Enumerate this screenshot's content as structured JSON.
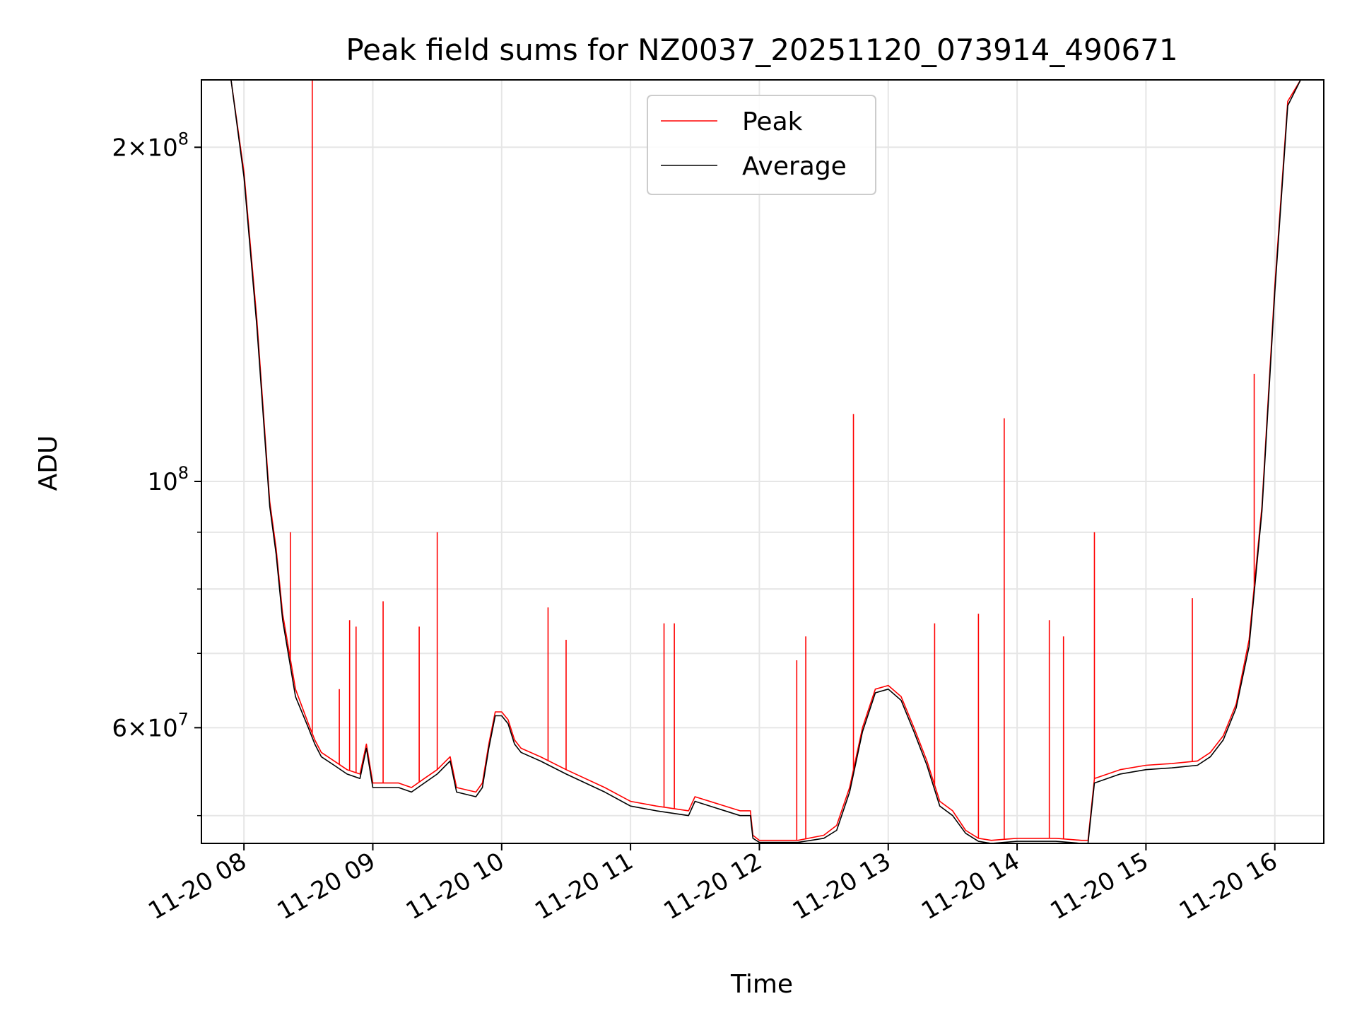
{
  "chart_data": {
    "type": "line",
    "title": "Peak field sums for NZ0037_20251120_073914_490671",
    "xlabel": "Time",
    "ylabel": "ADU",
    "y_scale": "log",
    "grid": true,
    "legend_position": "upper center",
    "xlim": [
      7.67,
      16.38
    ],
    "ylim": [
      47200000,
      230000000
    ],
    "x_ticks": [
      {
        "value": 8,
        "label": "11-20 08"
      },
      {
        "value": 9,
        "label": "11-20 09"
      },
      {
        "value": 10,
        "label": "11-20 10"
      },
      {
        "value": 11,
        "label": "11-20 11"
      },
      {
        "value": 12,
        "label": "11-20 12"
      },
      {
        "value": 13,
        "label": "11-20 13"
      },
      {
        "value": 14,
        "label": "11-20 14"
      },
      {
        "value": 15,
        "label": "11-20 15"
      },
      {
        "value": 16,
        "label": "11-20 16"
      }
    ],
    "y_major_ticks": [
      {
        "value": 60000000,
        "mantissa": "6",
        "exp": "7"
      },
      {
        "value": 100000000,
        "mantissa": "",
        "exp": "8"
      },
      {
        "value": 200000000,
        "mantissa": "2",
        "exp": "8"
      }
    ],
    "y_minor_ticks": [
      50000000,
      70000000,
      80000000,
      90000000
    ],
    "series": [
      {
        "name": "Peak",
        "color": "#ff0000",
        "x": [
          7.67,
          7.9,
          8.0,
          8.1,
          8.2,
          8.25,
          8.3,
          8.4,
          8.5,
          8.55,
          8.6,
          8.7,
          8.8,
          8.9,
          8.95,
          9.0,
          9.2,
          9.3,
          9.4,
          9.5,
          9.6,
          9.65,
          9.8,
          9.85,
          9.9,
          9.95,
          10.0,
          10.05,
          10.1,
          10.15,
          10.3,
          10.5,
          10.8,
          11.0,
          11.2,
          11.45,
          11.5,
          11.85,
          11.93,
          11.95,
          12.0,
          12.3,
          12.5,
          12.6,
          12.7,
          12.8,
          12.9,
          13.0,
          13.1,
          13.2,
          13.3,
          13.4,
          13.5,
          13.6,
          13.7,
          13.8,
          14.0,
          14.3,
          14.5,
          14.55,
          14.6,
          14.8,
          15.0,
          15.2,
          15.4,
          15.5,
          15.6,
          15.7,
          15.8,
          15.9,
          16.0,
          16.1,
          16.2,
          16.38
        ],
        "y": [
          230000000,
          230000000,
          190000000,
          140000000,
          96000000,
          87000000,
          76000000,
          65000000,
          60500000,
          58500000,
          57000000,
          56000000,
          55000000,
          54500000,
          58000000,
          53500000,
          53500000,
          53000000,
          54000000,
          55000000,
          56500000,
          53000000,
          52500000,
          53500000,
          58000000,
          62000000,
          62000000,
          61000000,
          58500000,
          57500000,
          56500000,
          55000000,
          53000000,
          51500000,
          51000000,
          50500000,
          52000000,
          50500000,
          50500000,
          48000000,
          47500000,
          47500000,
          48000000,
          49000000,
          53000000,
          60000000,
          65000000,
          65500000,
          64000000,
          60000000,
          56000000,
          51500000,
          50500000,
          48500000,
          47700000,
          47500000,
          47700000,
          47700000,
          47500000,
          47500000,
          54000000,
          55000000,
          55500000,
          55700000,
          56000000,
          57000000,
          59000000,
          63000000,
          72000000,
          95000000,
          150000000,
          220000000,
          230000000,
          230000000
        ],
        "spikes": [
          {
            "x": 8.36,
            "y": 90000000
          },
          {
            "x": 8.53,
            "y": 230000000
          },
          {
            "x": 8.74,
            "y": 65000000
          },
          {
            "x": 8.82,
            "y": 75000000
          },
          {
            "x": 8.87,
            "y": 74000000
          },
          {
            "x": 9.08,
            "y": 78000000
          },
          {
            "x": 9.36,
            "y": 74000000
          },
          {
            "x": 9.5,
            "y": 90000000
          },
          {
            "x": 10.36,
            "y": 77000000
          },
          {
            "x": 10.5,
            "y": 72000000
          },
          {
            "x": 11.26,
            "y": 74500000
          },
          {
            "x": 11.34,
            "y": 74500000
          },
          {
            "x": 12.29,
            "y": 69000000
          },
          {
            "x": 12.36,
            "y": 72500000
          },
          {
            "x": 12.73,
            "y": 115000000
          },
          {
            "x": 13.36,
            "y": 74500000
          },
          {
            "x": 13.7,
            "y": 76000000
          },
          {
            "x": 13.9,
            "y": 114000000
          },
          {
            "x": 14.25,
            "y": 75000000
          },
          {
            "x": 14.36,
            "y": 72500000
          },
          {
            "x": 14.6,
            "y": 90000000
          },
          {
            "x": 15.36,
            "y": 78500000
          },
          {
            "x": 15.84,
            "y": 125000000
          }
        ]
      },
      {
        "name": "Average",
        "color": "#000000",
        "x": [
          7.67,
          7.9,
          8.0,
          8.1,
          8.2,
          8.25,
          8.3,
          8.4,
          8.5,
          8.55,
          8.6,
          8.7,
          8.8,
          8.9,
          8.95,
          9.0,
          9.2,
          9.3,
          9.4,
          9.5,
          9.6,
          9.65,
          9.8,
          9.85,
          9.9,
          9.95,
          10.0,
          10.05,
          10.1,
          10.15,
          10.3,
          10.5,
          10.8,
          11.0,
          11.2,
          11.45,
          11.5,
          11.85,
          11.93,
          11.95,
          12.0,
          12.3,
          12.5,
          12.6,
          12.7,
          12.8,
          12.9,
          13.0,
          13.1,
          13.2,
          13.3,
          13.4,
          13.5,
          13.6,
          13.7,
          13.8,
          14.0,
          14.3,
          14.5,
          14.55,
          14.6,
          14.8,
          15.0,
          15.2,
          15.4,
          15.5,
          15.6,
          15.7,
          15.8,
          15.9,
          16.0,
          16.1,
          16.2,
          16.38
        ],
        "y": [
          230000000,
          230000000,
          188000000,
          138000000,
          95000000,
          86000000,
          75000000,
          64000000,
          60000000,
          58000000,
          56500000,
          55500000,
          54500000,
          54000000,
          57500000,
          53000000,
          53000000,
          52500000,
          53500000,
          54500000,
          56000000,
          52500000,
          52000000,
          53000000,
          57500000,
          61500000,
          61500000,
          60500000,
          58000000,
          57000000,
          56000000,
          54500000,
          52500000,
          51000000,
          50500000,
          50000000,
          51500000,
          50000000,
          50000000,
          47700000,
          47300000,
          47300000,
          47700000,
          48500000,
          52500000,
          59500000,
          64500000,
          65000000,
          63500000,
          59500000,
          55500000,
          51000000,
          50000000,
          48200000,
          47400000,
          47200000,
          47400000,
          47400000,
          47200000,
          47200000,
          53500000,
          54500000,
          55000000,
          55200000,
          55500000,
          56500000,
          58500000,
          62500000,
          71000000,
          94000000,
          148000000,
          218000000,
          230000000,
          230000000
        ]
      }
    ]
  }
}
